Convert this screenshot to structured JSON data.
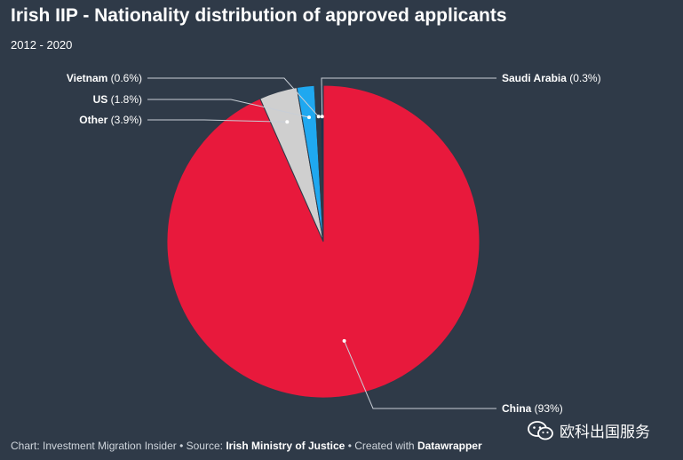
{
  "chart_data": {
    "type": "pie",
    "title": "Irish IIP - Nationality distribution of approved applicants",
    "subtitle": "2012 - 2020",
    "slices": [
      {
        "name": "China",
        "display": "(93%)",
        "value": 93.0,
        "color": "#e8193c",
        "label_side": "right"
      },
      {
        "name": "Other",
        "display": "(3.9%)",
        "value": 3.9,
        "color": "#cfcfcf",
        "label_side": "left"
      },
      {
        "name": "US",
        "display": "(1.8%)",
        "value": 1.8,
        "color": "#1fa8f0",
        "label_side": "left"
      },
      {
        "name": "Vietnam",
        "display": "(0.6%)",
        "value": 0.6,
        "color": "#2f3a48",
        "label_side": "left"
      },
      {
        "name": "Saudi Arabia",
        "display": "(0.3%)",
        "value": 0.3,
        "color": "#14304f",
        "label_side": "right"
      }
    ]
  },
  "footer": {
    "prefix": "Chart: Investment Migration Insider • Source: ",
    "source": "Irish Ministry of Justice",
    "middle": " • Created with ",
    "tool": "Datawrapper"
  },
  "watermark": {
    "text": "欧科出国服务",
    "icon": "wechat-icon"
  }
}
